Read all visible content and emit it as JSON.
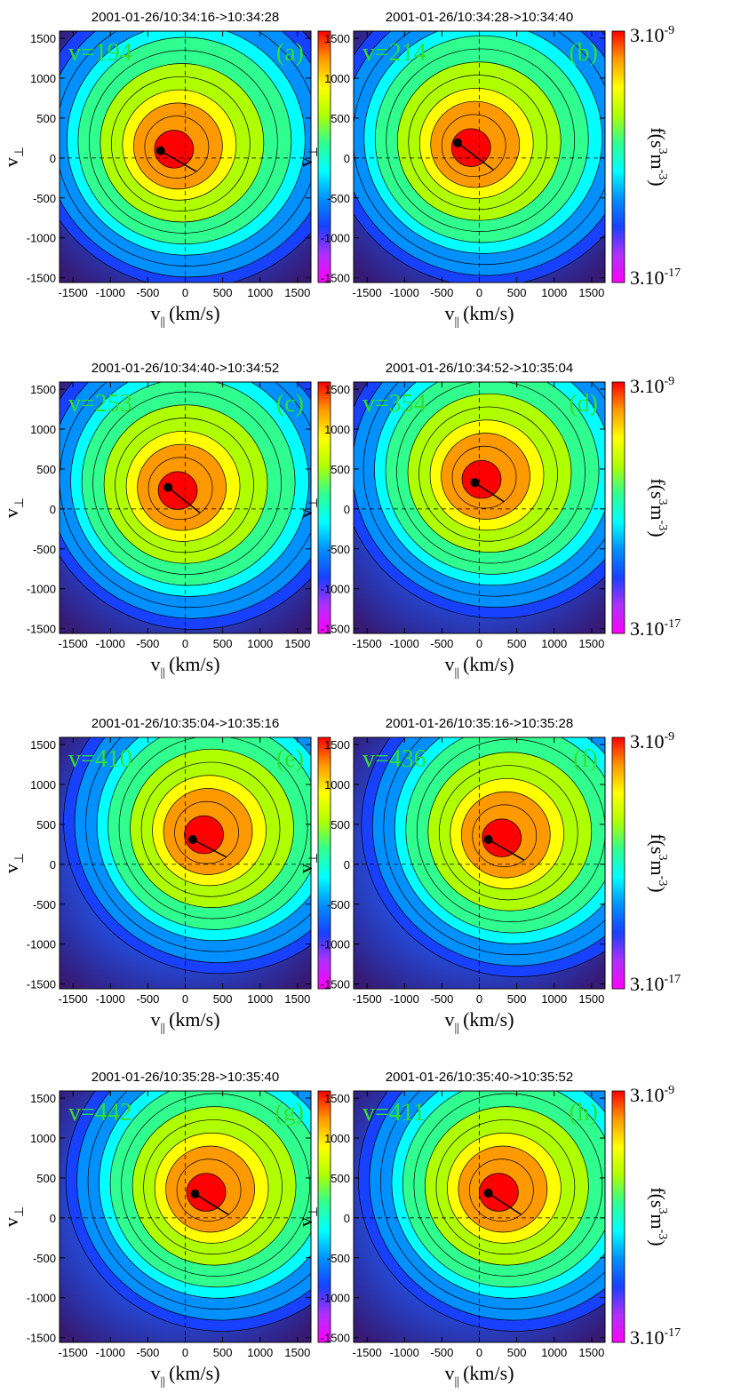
{
  "colorscale": [
    "#ff00ff",
    "#b030ff",
    "#1840ff",
    "#0090ff",
    "#00ffff",
    "#30ff90",
    "#b0ff00",
    "#ffff00",
    "#ff9900",
    "#ff0000"
  ],
  "plot_color": "#2452e6",
  "annotation_color": "#33dd33",
  "chart_data": [
    {
      "type": "contour",
      "title": "2001-01-26/10:34:16->10:34:28",
      "annotation": "v=194",
      "panel_label": "(a)",
      "x_label": {
        "symbol": "v",
        "subscript": "||",
        "unit": "(km/s)"
      },
      "y_label": {
        "symbol": "v",
        "subscript": "⊥"
      },
      "xlim": [
        -1680,
        1680
      ],
      "ylim": [
        -1560,
        1590
      ],
      "xticks": [
        -1500,
        -1000,
        -500,
        0,
        500,
        1000,
        1500
      ],
      "yticks": [
        -1500,
        -1000,
        -500,
        0,
        500,
        1000,
        1500
      ],
      "peak": [
        -150,
        110
      ],
      "dot": [
        -330,
        90
      ]
    },
    {
      "type": "contour",
      "title": "2001-01-26/10:34:28->10:34:40",
      "annotation": "v=214",
      "panel_label": "(b)",
      "x_label": {
        "symbol": "v",
        "subscript": "||",
        "unit": "(km/s)"
      },
      "y_label": {
        "symbol": "v",
        "subscript": "⊥"
      },
      "xlim": [
        -1680,
        1680
      ],
      "ylim": [
        -1560,
        1590
      ],
      "xticks": [
        -1500,
        -1000,
        -500,
        0,
        500,
        1000,
        1500
      ],
      "yticks": [
        -1500,
        -1000,
        -500,
        0,
        500,
        1000,
        1500
      ],
      "peak": [
        -110,
        130
      ],
      "dot": [
        -290,
        190
      ],
      "colorbar": {
        "max": {
          "base": "3.10",
          "exponent": "-9"
        },
        "min": {
          "base": "3.10",
          "exponent": "-17"
        },
        "label": [
          "f(s",
          "3",
          "m",
          "-3",
          ")"
        ]
      }
    },
    {
      "type": "contour",
      "title": "2001-01-26/10:34:40->10:34:52",
      "annotation": "v=253",
      "panel_label": "(c)",
      "x_label": {
        "symbol": "v",
        "subscript": "||",
        "unit": "(km/s)"
      },
      "y_label": {
        "symbol": "v",
        "subscript": "⊥"
      },
      "xlim": [
        -1680,
        1680
      ],
      "ylim": [
        -1560,
        1590
      ],
      "xticks": [
        -1500,
        -1000,
        -500,
        0,
        500,
        1000,
        1500
      ],
      "yticks": [
        -1500,
        -1000,
        -500,
        0,
        500,
        1000,
        1500
      ],
      "peak": [
        -100,
        230
      ],
      "dot": [
        -230,
        270
      ]
    },
    {
      "type": "contour",
      "title": "2001-01-26/10:34:52->10:35:04",
      "annotation": "v=354",
      "panel_label": "(d)",
      "x_label": {
        "symbol": "v",
        "subscript": "||",
        "unit": "(km/s)"
      },
      "y_label": {
        "symbol": "v",
        "subscript": "⊥"
      },
      "xlim": [
        -1680,
        1680
      ],
      "ylim": [
        -1560,
        1590
      ],
      "xticks": [
        -1500,
        -1000,
        -500,
        0,
        500,
        1000,
        1500
      ],
      "yticks": [
        -1500,
        -1000,
        -500,
        0,
        500,
        1000,
        1500
      ],
      "peak": [
        30,
        370
      ],
      "dot": [
        -60,
        330
      ],
      "colorbar": {
        "max": {
          "base": "3.10",
          "exponent": "-9"
        },
        "min": {
          "base": "3.10",
          "exponent": "-17"
        },
        "label": [
          "f(s",
          "3",
          "m",
          "-3",
          ")"
        ]
      }
    },
    {
      "type": "contour",
      "title": "2001-01-26/10:35:04->10:35:16",
      "annotation": "v=410",
      "panel_label": "(e)",
      "x_label": {
        "symbol": "v",
        "subscript": "||",
        "unit": "(km/s)"
      },
      "y_label": {
        "symbol": "v",
        "subscript": "⊥"
      },
      "xlim": [
        -1680,
        1680
      ],
      "ylim": [
        -1560,
        1590
      ],
      "xticks": [
        -1500,
        -1000,
        -500,
        0,
        500,
        1000,
        1500
      ],
      "yticks": [
        -1500,
        -1000,
        -500,
        0,
        500,
        1000,
        1500
      ],
      "peak": [
        250,
        370
      ],
      "dot": [
        100,
        310
      ]
    },
    {
      "type": "contour",
      "title": "2001-01-26/10:35:16->10:35:28",
      "annotation": "v=436",
      "panel_label": "(f)",
      "x_label": {
        "symbol": "v",
        "subscript": "||",
        "unit": "(km/s)"
      },
      "y_label": {
        "symbol": "v",
        "subscript": "⊥"
      },
      "xlim": [
        -1680,
        1680
      ],
      "ylim": [
        -1560,
        1590
      ],
      "xticks": [
        -1500,
        -1000,
        -500,
        0,
        500,
        1000,
        1500
      ],
      "yticks": [
        -1500,
        -1000,
        -500,
        0,
        500,
        1000,
        1500
      ],
      "peak": [
        300,
        330
      ],
      "dot": [
        120,
        310
      ],
      "colorbar": {
        "max": {
          "base": "3.10",
          "exponent": "-9"
        },
        "min": {
          "base": "3.10",
          "exponent": "-17"
        },
        "label": [
          "f(s",
          "3",
          "m",
          "-3",
          ")"
        ]
      }
    },
    {
      "type": "contour",
      "title": "2001-01-26/10:35:28->10:35:40",
      "annotation": "v=442",
      "panel_label": "(g)",
      "x_label": {
        "symbol": "v",
        "subscript": "||",
        "unit": "(km/s)"
      },
      "y_label": {
        "symbol": "v",
        "subscript": "⊥"
      },
      "xlim": [
        -1680,
        1680
      ],
      "ylim": [
        -1560,
        1590
      ],
      "xticks": [
        -1500,
        -1000,
        -500,
        0,
        500,
        1000,
        1500
      ],
      "yticks": [
        -1500,
        -1000,
        -500,
        0,
        500,
        1000,
        1500
      ],
      "peak": [
        280,
        320
      ],
      "dot": [
        130,
        300
      ]
    },
    {
      "type": "contour",
      "title": "2001-01-26/10:35:40->10:35:52",
      "annotation": "v=411",
      "panel_label": "(h)",
      "x_label": {
        "symbol": "v",
        "subscript": "||",
        "unit": "(km/s)"
      },
      "y_label": {
        "symbol": "v",
        "subscript": "⊥"
      },
      "xlim": [
        -1680,
        1680
      ],
      "ylim": [
        -1560,
        1590
      ],
      "xticks": [
        -1500,
        -1000,
        -500,
        0,
        500,
        1000,
        1500
      ],
      "yticks": [
        -1500,
        -1000,
        -500,
        0,
        500,
        1000,
        1500
      ],
      "peak": [
        260,
        320
      ],
      "dot": [
        120,
        310
      ],
      "colorbar": {
        "max": {
          "base": "3.10",
          "exponent": "-9"
        },
        "min": {
          "base": "3.10",
          "exponent": "-17"
        },
        "label": [
          "f(s",
          "3",
          "m",
          "-3",
          ")"
        ]
      }
    }
  ]
}
